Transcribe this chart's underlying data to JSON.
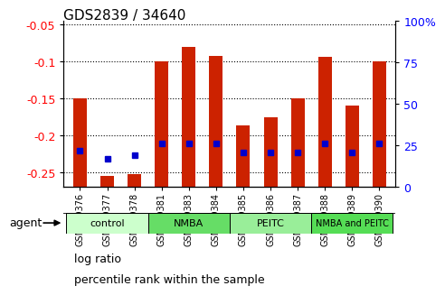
{
  "title": "GDS2839 / 34640",
  "samples": [
    "GSM159376",
    "GSM159377",
    "GSM159378",
    "GSM159381",
    "GSM159383",
    "GSM159384",
    "GSM159385",
    "GSM159386",
    "GSM159387",
    "GSM159388",
    "GSM159389",
    "GSM159390"
  ],
  "log_ratios": [
    -0.15,
    -0.255,
    -0.253,
    -0.1,
    -0.08,
    -0.093,
    -0.187,
    -0.175,
    -0.15,
    -0.094,
    -0.16,
    -0.1
  ],
  "percentile_ranks": [
    22,
    17,
    19,
    26,
    26,
    26,
    21,
    21,
    21,
    26,
    21,
    26
  ],
  "groups": [
    {
      "label": "control",
      "indices": [
        0,
        1,
        2
      ],
      "color": "#ccffcc"
    },
    {
      "label": "NMBA",
      "indices": [
        3,
        4,
        5
      ],
      "color": "#66dd66"
    },
    {
      "label": "PEITC",
      "indices": [
        6,
        7,
        8
      ],
      "color": "#99ee99"
    },
    {
      "label": "NMBA and PEITC",
      "indices": [
        9,
        10,
        11
      ],
      "color": "#55dd55"
    }
  ],
  "right_ylim": [
    0,
    100
  ],
  "right_yticks": [
    0,
    25,
    50,
    75,
    100
  ],
  "left_yticks_log": [
    -0.25,
    -0.2,
    -0.15,
    -0.1,
    -0.05
  ],
  "log_min": -0.27,
  "log_max": -0.045,
  "bar_color": "#cc2200",
  "marker_color": "#0000cc",
  "bar_width": 0.5,
  "agent_label": "agent",
  "legend_bar_label": "log ratio",
  "legend_marker_label": "percentile rank within the sample",
  "bg_color": "#ffffff",
  "plot_bg": "#ffffff"
}
